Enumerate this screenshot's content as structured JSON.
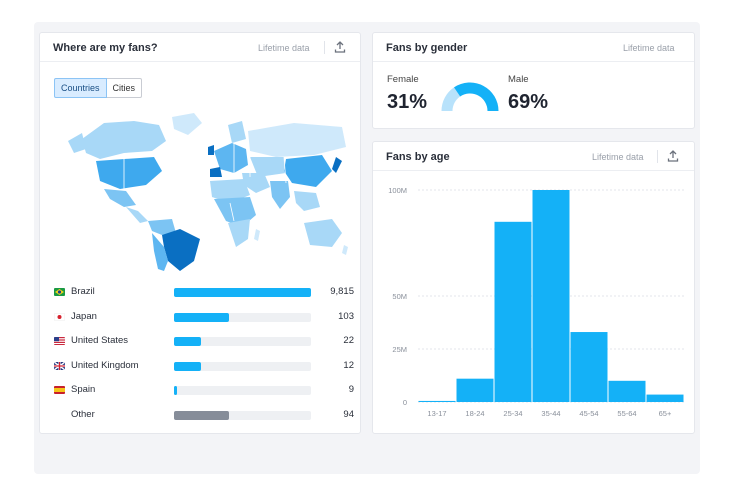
{
  "fans_location": {
    "title": "Where are my fans?",
    "lifetime_label": "Lifetime data",
    "tabs": [
      {
        "label": "Countries",
        "active": true
      },
      {
        "label": "Cities",
        "active": false
      }
    ],
    "countries": [
      {
        "name": "Brazil",
        "value": "9,815",
        "share": 1.0,
        "flag": "brazil-flag-icon",
        "color": "#14b1f7"
      },
      {
        "name": "Japan",
        "value": "103",
        "share": 0.4,
        "flag": "japan-flag-icon",
        "color": "#14b1f7"
      },
      {
        "name": "United States",
        "value": "22",
        "share": 0.2,
        "flag": "us-flag-icon",
        "color": "#14b1f7"
      },
      {
        "name": "United Kingdom",
        "value": "12",
        "share": 0.2,
        "flag": "uk-flag-icon",
        "color": "#14b1f7"
      },
      {
        "name": "Spain",
        "value": "9",
        "share": 0.02,
        "flag": "spain-flag-icon",
        "color": "#14b1f7"
      },
      {
        "name": "Other",
        "value": "94",
        "share": 0.4,
        "flag": "",
        "color": "#868d99"
      }
    ]
  },
  "fans_gender": {
    "title": "Fans by gender",
    "lifetime_label": "Lifetime data",
    "female_label": "Female",
    "female_pct": "31%",
    "male_label": "Male",
    "male_pct": "69%",
    "female_color": "#b8e2fb",
    "male_color": "#14b1f7"
  },
  "fans_age": {
    "title": "Fans by age",
    "lifetime_label": "Lifetime data"
  },
  "chart_data": {
    "type": "bar",
    "title": "Fans by age",
    "categories": [
      "13-17",
      "18-24",
      "25-34",
      "35-44",
      "45-54",
      "55-64",
      "65+"
    ],
    "values": [
      0.5,
      11,
      85,
      100,
      33,
      10,
      3.5
    ],
    "ytick_values": [
      0,
      25,
      50,
      100
    ],
    "yticks": [
      "0",
      "25M",
      "50M",
      "100M"
    ],
    "ylim": [
      0,
      100
    ],
    "grid": true,
    "color": "#14b1f7"
  }
}
